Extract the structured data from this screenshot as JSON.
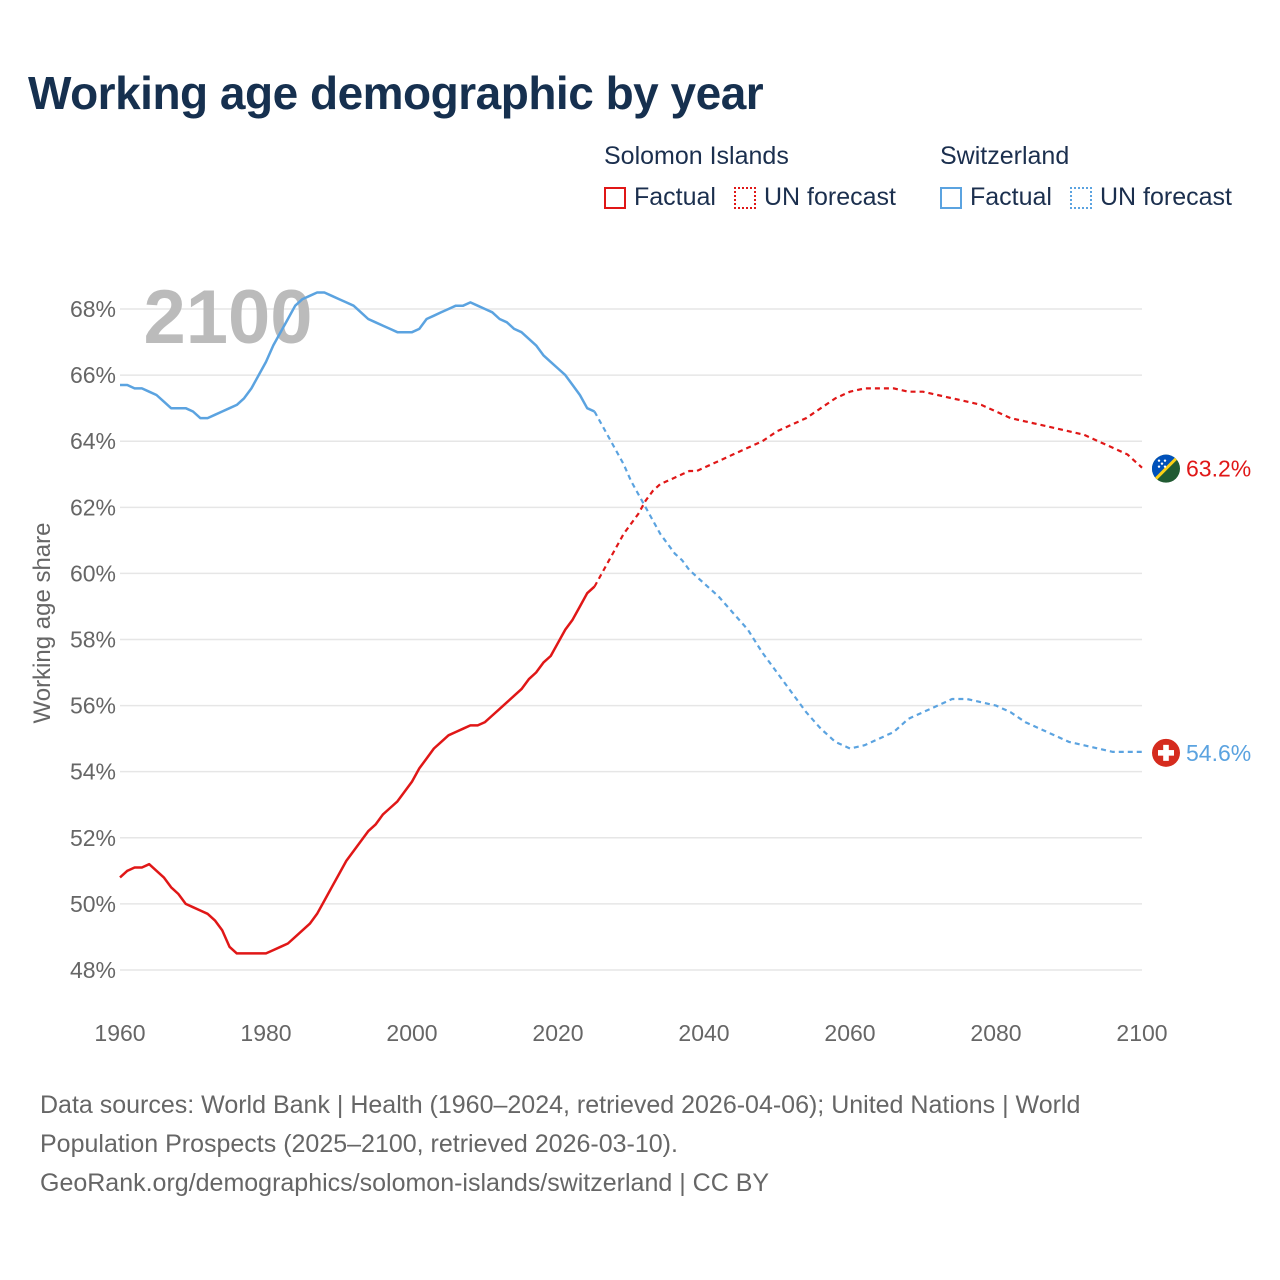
{
  "title": "Working age demographic by year",
  "year_watermark": "2100",
  "legend": {
    "groups": [
      {
        "name": "Solomon Islands",
        "color": "#e01717",
        "factual_label": "Factual",
        "forecast_label": "UN forecast"
      },
      {
        "name": "Switzerland",
        "color": "#5ba3e0",
        "factual_label": "Factual",
        "forecast_label": "UN forecast"
      }
    ]
  },
  "footer": {
    "line1": "Data sources: World Bank | Health (1960–2024, retrieved 2026-04-06); United Nations | World",
    "line2": "Population Prospects (2025–2100, retrieved 2026-03-10).",
    "line3": "GeoRank.org/demographics/solomon-islands/switzerland | CC BY"
  },
  "chart_data": {
    "type": "line",
    "title": "Working age demographic by year",
    "xlabel": "",
    "ylabel": "Working age share",
    "xlim": [
      1960,
      2100
    ],
    "ylim": [
      47,
      69
    ],
    "x_ticks": [
      1960,
      1980,
      2000,
      2020,
      2040,
      2060,
      2080,
      2100
    ],
    "y_ticks": [
      48,
      50,
      52,
      54,
      56,
      58,
      60,
      62,
      64,
      66,
      68
    ],
    "y_tick_suffix": "%",
    "forecast_start": 2025,
    "series": [
      {
        "name": "Solomon Islands",
        "color": "#e01717",
        "end_label": "63.2%",
        "flag": "solomon-islands",
        "points": [
          [
            1960,
            50.8
          ],
          [
            1961,
            51.0
          ],
          [
            1962,
            51.1
          ],
          [
            1963,
            51.1
          ],
          [
            1964,
            51.2
          ],
          [
            1965,
            51.0
          ],
          [
            1966,
            50.8
          ],
          [
            1967,
            50.5
          ],
          [
            1968,
            50.3
          ],
          [
            1969,
            50.0
          ],
          [
            1970,
            49.9
          ],
          [
            1971,
            49.8
          ],
          [
            1972,
            49.7
          ],
          [
            1973,
            49.5
          ],
          [
            1974,
            49.2
          ],
          [
            1975,
            48.7
          ],
          [
            1976,
            48.5
          ],
          [
            1977,
            48.5
          ],
          [
            1978,
            48.5
          ],
          [
            1979,
            48.5
          ],
          [
            1980,
            48.5
          ],
          [
            1981,
            48.6
          ],
          [
            1982,
            48.7
          ],
          [
            1983,
            48.8
          ],
          [
            1984,
            49.0
          ],
          [
            1985,
            49.2
          ],
          [
            1986,
            49.4
          ],
          [
            1987,
            49.7
          ],
          [
            1988,
            50.1
          ],
          [
            1989,
            50.5
          ],
          [
            1990,
            50.9
          ],
          [
            1991,
            51.3
          ],
          [
            1992,
            51.6
          ],
          [
            1993,
            51.9
          ],
          [
            1994,
            52.2
          ],
          [
            1995,
            52.4
          ],
          [
            1996,
            52.7
          ],
          [
            1997,
            52.9
          ],
          [
            1998,
            53.1
          ],
          [
            1999,
            53.4
          ],
          [
            2000,
            53.7
          ],
          [
            2001,
            54.1
          ],
          [
            2002,
            54.4
          ],
          [
            2003,
            54.7
          ],
          [
            2004,
            54.9
          ],
          [
            2005,
            55.1
          ],
          [
            2006,
            55.2
          ],
          [
            2007,
            55.3
          ],
          [
            2008,
            55.4
          ],
          [
            2009,
            55.4
          ],
          [
            2010,
            55.5
          ],
          [
            2011,
            55.7
          ],
          [
            2012,
            55.9
          ],
          [
            2013,
            56.1
          ],
          [
            2014,
            56.3
          ],
          [
            2015,
            56.5
          ],
          [
            2016,
            56.8
          ],
          [
            2017,
            57.0
          ],
          [
            2018,
            57.3
          ],
          [
            2019,
            57.5
          ],
          [
            2020,
            57.9
          ],
          [
            2021,
            58.3
          ],
          [
            2022,
            58.6
          ],
          [
            2023,
            59.0
          ],
          [
            2024,
            59.4
          ],
          [
            2025,
            59.6
          ],
          [
            2026,
            60.0
          ],
          [
            2027,
            60.4
          ],
          [
            2028,
            60.8
          ],
          [
            2029,
            61.2
          ],
          [
            2030,
            61.5
          ],
          [
            2031,
            61.8
          ],
          [
            2032,
            62.2
          ],
          [
            2033,
            62.5
          ],
          [
            2034,
            62.7
          ],
          [
            2035,
            62.8
          ],
          [
            2036,
            62.9
          ],
          [
            2037,
            63.0
          ],
          [
            2038,
            63.1
          ],
          [
            2039,
            63.1
          ],
          [
            2040,
            63.2
          ],
          [
            2042,
            63.4
          ],
          [
            2044,
            63.6
          ],
          [
            2046,
            63.8
          ],
          [
            2048,
            64.0
          ],
          [
            2050,
            64.3
          ],
          [
            2052,
            64.5
          ],
          [
            2054,
            64.7
          ],
          [
            2056,
            65.0
          ],
          [
            2058,
            65.3
          ],
          [
            2060,
            65.5
          ],
          [
            2062,
            65.6
          ],
          [
            2064,
            65.6
          ],
          [
            2066,
            65.6
          ],
          [
            2068,
            65.5
          ],
          [
            2070,
            65.5
          ],
          [
            2072,
            65.4
          ],
          [
            2074,
            65.3
          ],
          [
            2076,
            65.2
          ],
          [
            2078,
            65.1
          ],
          [
            2080,
            64.9
          ],
          [
            2082,
            64.7
          ],
          [
            2084,
            64.6
          ],
          [
            2086,
            64.5
          ],
          [
            2088,
            64.4
          ],
          [
            2090,
            64.3
          ],
          [
            2092,
            64.2
          ],
          [
            2094,
            64.0
          ],
          [
            2096,
            63.8
          ],
          [
            2098,
            63.6
          ],
          [
            2099,
            63.4
          ],
          [
            2100,
            63.2
          ]
        ]
      },
      {
        "name": "Switzerland",
        "color": "#5ba3e0",
        "end_label": "54.6%",
        "flag": "switzerland",
        "points": [
          [
            1960,
            65.7
          ],
          [
            1961,
            65.7
          ],
          [
            1962,
            65.6
          ],
          [
            1963,
            65.6
          ],
          [
            1964,
            65.5
          ],
          [
            1965,
            65.4
          ],
          [
            1966,
            65.2
          ],
          [
            1967,
            65.0
          ],
          [
            1968,
            65.0
          ],
          [
            1969,
            65.0
          ],
          [
            1970,
            64.9
          ],
          [
            1971,
            64.7
          ],
          [
            1972,
            64.7
          ],
          [
            1973,
            64.8
          ],
          [
            1974,
            64.9
          ],
          [
            1975,
            65.0
          ],
          [
            1976,
            65.1
          ],
          [
            1977,
            65.3
          ],
          [
            1978,
            65.6
          ],
          [
            1979,
            66.0
          ],
          [
            1980,
            66.4
          ],
          [
            1981,
            66.9
          ],
          [
            1982,
            67.3
          ],
          [
            1983,
            67.7
          ],
          [
            1984,
            68.1
          ],
          [
            1985,
            68.3
          ],
          [
            1986,
            68.4
          ],
          [
            1987,
            68.5
          ],
          [
            1988,
            68.5
          ],
          [
            1989,
            68.4
          ],
          [
            1990,
            68.3
          ],
          [
            1991,
            68.2
          ],
          [
            1992,
            68.1
          ],
          [
            1993,
            67.9
          ],
          [
            1994,
            67.7
          ],
          [
            1995,
            67.6
          ],
          [
            1996,
            67.5
          ],
          [
            1997,
            67.4
          ],
          [
            1998,
            67.3
          ],
          [
            1999,
            67.3
          ],
          [
            2000,
            67.3
          ],
          [
            2001,
            67.4
          ],
          [
            2002,
            67.7
          ],
          [
            2003,
            67.8
          ],
          [
            2004,
            67.9
          ],
          [
            2005,
            68.0
          ],
          [
            2006,
            68.1
          ],
          [
            2007,
            68.1
          ],
          [
            2008,
            68.2
          ],
          [
            2009,
            68.1
          ],
          [
            2010,
            68.0
          ],
          [
            2011,
            67.9
          ],
          [
            2012,
            67.7
          ],
          [
            2013,
            67.6
          ],
          [
            2014,
            67.4
          ],
          [
            2015,
            67.3
          ],
          [
            2016,
            67.1
          ],
          [
            2017,
            66.9
          ],
          [
            2018,
            66.6
          ],
          [
            2019,
            66.4
          ],
          [
            2020,
            66.2
          ],
          [
            2021,
            66.0
          ],
          [
            2022,
            65.7
          ],
          [
            2023,
            65.4
          ],
          [
            2024,
            65.0
          ],
          [
            2025,
            64.9
          ],
          [
            2026,
            64.5
          ],
          [
            2027,
            64.1
          ],
          [
            2028,
            63.7
          ],
          [
            2029,
            63.3
          ],
          [
            2030,
            62.8
          ],
          [
            2031,
            62.4
          ],
          [
            2032,
            62.0
          ],
          [
            2033,
            61.6
          ],
          [
            2034,
            61.2
          ],
          [
            2035,
            60.9
          ],
          [
            2036,
            60.6
          ],
          [
            2037,
            60.4
          ],
          [
            2038,
            60.1
          ],
          [
            2039,
            59.9
          ],
          [
            2040,
            59.7
          ],
          [
            2042,
            59.3
          ],
          [
            2044,
            58.8
          ],
          [
            2046,
            58.3
          ],
          [
            2048,
            57.6
          ],
          [
            2050,
            57.0
          ],
          [
            2052,
            56.4
          ],
          [
            2054,
            55.8
          ],
          [
            2056,
            55.3
          ],
          [
            2058,
            54.9
          ],
          [
            2060,
            54.7
          ],
          [
            2062,
            54.8
          ],
          [
            2064,
            55.0
          ],
          [
            2066,
            55.2
          ],
          [
            2068,
            55.6
          ],
          [
            2070,
            55.8
          ],
          [
            2072,
            56.0
          ],
          [
            2074,
            56.2
          ],
          [
            2076,
            56.2
          ],
          [
            2078,
            56.1
          ],
          [
            2080,
            56.0
          ],
          [
            2082,
            55.8
          ],
          [
            2084,
            55.5
          ],
          [
            2086,
            55.3
          ],
          [
            2088,
            55.1
          ],
          [
            2090,
            54.9
          ],
          [
            2092,
            54.8
          ],
          [
            2094,
            54.7
          ],
          [
            2096,
            54.6
          ],
          [
            2098,
            54.6
          ],
          [
            2100,
            54.6
          ]
        ]
      }
    ]
  }
}
